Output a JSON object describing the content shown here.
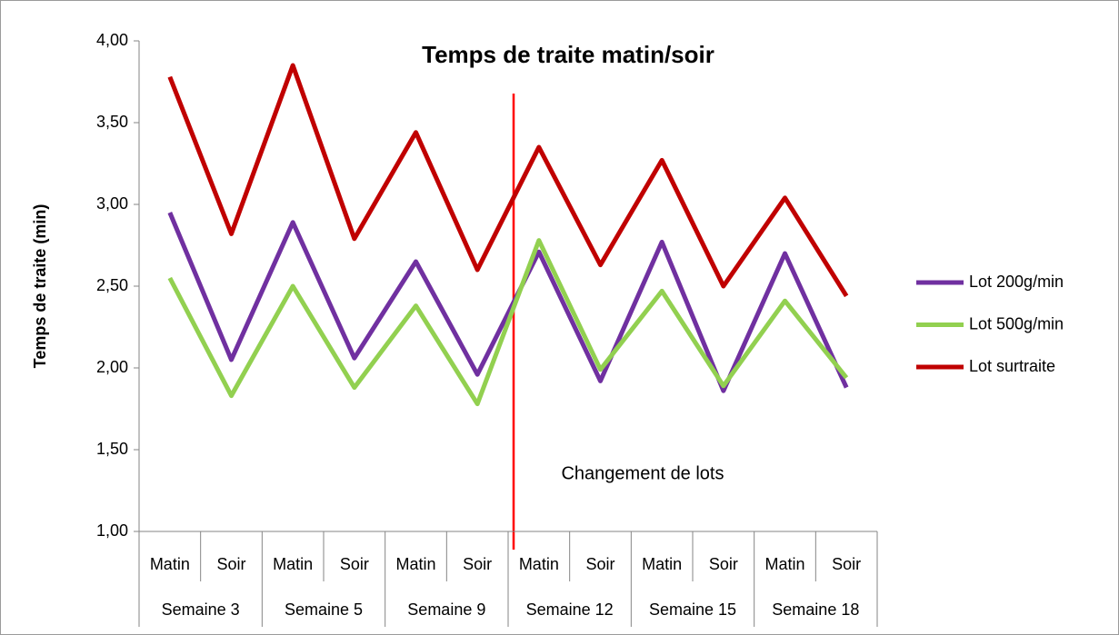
{
  "chart_data": {
    "type": "line",
    "title": "Temps de traite matin/soir",
    "y_label": "Temps de traite (min)",
    "annotation": "Changement de lots",
    "categories": [
      "Matin",
      "Soir",
      "Matin",
      "Soir",
      "Matin",
      "Soir",
      "Matin",
      "Soir",
      "Matin",
      "Soir",
      "Matin",
      "Soir"
    ],
    "category_groups": [
      "Semaine 3",
      "Semaine 5",
      "Semaine 9",
      "Semaine 12",
      "Semaine 15",
      "Semaine 18"
    ],
    "series": [
      {
        "name": "Lot 200g/min",
        "color": "#7030a0",
        "values": [
          2.95,
          2.05,
          2.89,
          2.06,
          2.65,
          1.96,
          2.71,
          1.92,
          2.77,
          1.86,
          2.7,
          1.88
        ]
      },
      {
        "name": "Lot 500g/min",
        "color": "#92d050",
        "values": [
          2.55,
          1.83,
          2.5,
          1.88,
          2.38,
          1.78,
          2.78,
          1.99,
          2.47,
          1.89,
          2.41,
          1.94
        ]
      },
      {
        "name": "Lot surtraite",
        "color": "#c00000",
        "values": [
          3.78,
          2.82,
          3.85,
          2.79,
          3.44,
          2.6,
          3.35,
          2.63,
          3.27,
          2.5,
          3.04,
          2.44
        ]
      }
    ],
    "ylim": [
      1,
      4
    ],
    "yticks": [
      {
        "value": 1,
        "label": "1,00"
      },
      {
        "value": 1.5,
        "label": "1,50"
      },
      {
        "value": 2,
        "label": "2,00"
      },
      {
        "value": 2.5,
        "label": "2,50"
      },
      {
        "value": 3,
        "label": "3,00"
      },
      {
        "value": 3.5,
        "label": "3,50"
      },
      {
        "value": 4,
        "label": "4,00"
      }
    ],
    "legend": "right"
  }
}
